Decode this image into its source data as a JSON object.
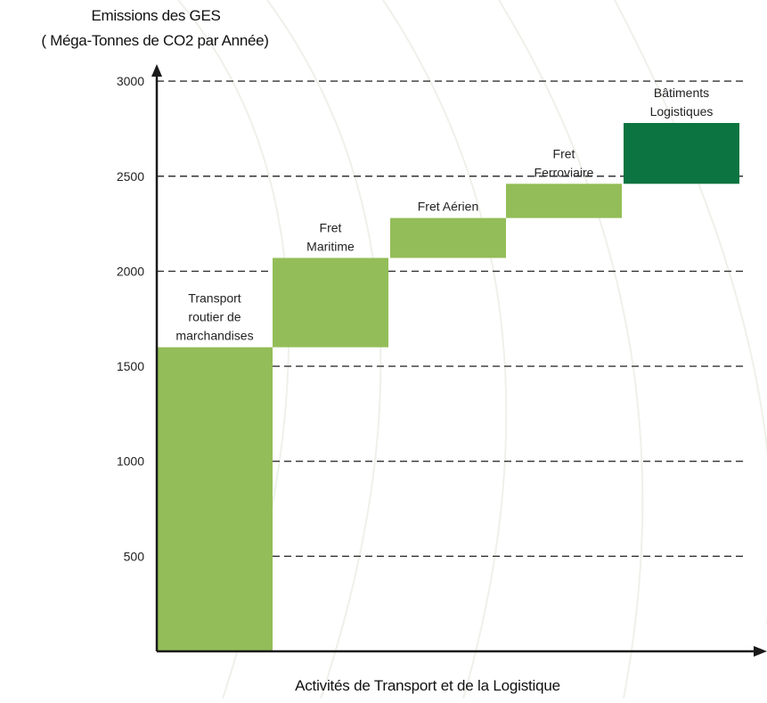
{
  "chart_data": {
    "type": "bar",
    "subtype": "waterfall",
    "ylabel_lines": [
      "Emissions des GES",
      "( Méga-Tonnes de CO2 par Année)"
    ],
    "xlabel": "Activités de Transport et de la Logistique",
    "ylim": [
      0,
      3000
    ],
    "yticks": [
      500,
      1000,
      1500,
      2000,
      2500,
      3000
    ],
    "grid": "dashed-horizontal",
    "categories": [
      [
        "Transport",
        "routier de",
        "marchandises"
      ],
      [
        "Fret",
        "Maritime"
      ],
      [
        "Fret Aérien"
      ],
      [
        "Fret",
        "Ferroviaire"
      ],
      [
        "Bâtiments",
        "Logistiques"
      ]
    ],
    "bars": [
      {
        "start": 0,
        "end": 1600,
        "value": 1600
      },
      {
        "start": 1600,
        "end": 2070,
        "value": 470
      },
      {
        "start": 2070,
        "end": 2280,
        "value": 210
      },
      {
        "start": 2280,
        "end": 2460,
        "value": 180
      },
      {
        "start": 2460,
        "end": 2780,
        "value": 320
      }
    ],
    "colors": {
      "bar": "#93bd58",
      "last_bar": "#0b7440",
      "axis": "#1a1a1a",
      "grid": "#333333",
      "text": "#222222"
    }
  }
}
